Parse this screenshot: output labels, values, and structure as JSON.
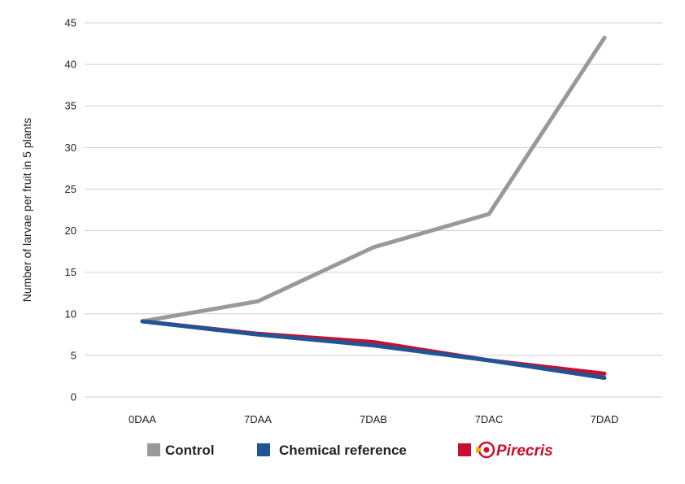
{
  "chart_data": {
    "type": "line",
    "title": "",
    "xlabel": "",
    "ylabel": "Number of larvae per fruit in 5 plants",
    "ylim": [
      0,
      45
    ],
    "yticks": [
      0,
      5,
      10,
      15,
      20,
      25,
      30,
      35,
      40,
      45
    ],
    "grid": true,
    "legend_position": "bottom",
    "categories": [
      "0DAA",
      "7DAA",
      "7DAB",
      "7DAC",
      "7DAD"
    ],
    "series": [
      {
        "name": "Control",
        "color": "#999999",
        "values": [
          9.1,
          11.5,
          18.0,
          22.0,
          43.2
        ]
      },
      {
        "name": "Chemical reference",
        "color": "#1f5597",
        "values": [
          9.1,
          7.5,
          6.2,
          4.4,
          2.3
        ]
      },
      {
        "name": "Pirecris",
        "color": "#c8102e",
        "values": [
          9.1,
          7.6,
          6.6,
          4.4,
          2.8
        ]
      }
    ]
  },
  "legend": {
    "items": [
      {
        "label": "Control",
        "color": "#999999"
      },
      {
        "label": "Chemical reference",
        "color": "#1f5597"
      },
      {
        "label": "Pirecris",
        "color": "#c8102e",
        "logo_icon": "pirecris-logo-icon"
      }
    ]
  }
}
